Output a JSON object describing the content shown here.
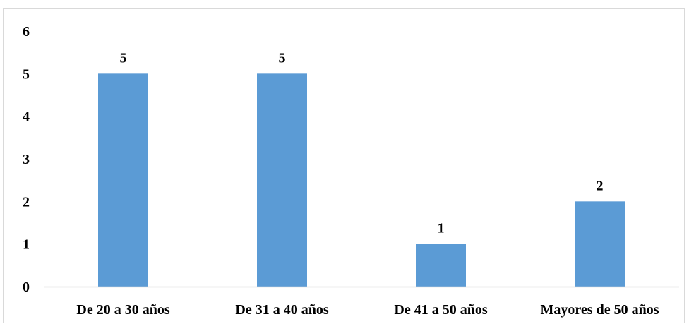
{
  "chart_data": {
    "type": "bar",
    "categories": [
      "De 20 a 30 años",
      "De 31 a 40 años",
      "De 41 a 50 años",
      "Mayores de 50 años"
    ],
    "values": [
      5,
      5,
      1,
      2
    ],
    "data_labels": [
      "5",
      "5",
      "1",
      "2"
    ],
    "y_ticks": [
      "0",
      "1",
      "2",
      "3",
      "4",
      "5",
      "6"
    ],
    "title": "",
    "xlabel": "",
    "ylabel": "",
    "ylim": [
      0,
      6
    ],
    "grid": false,
    "legend": "none",
    "bar_color": "#5b9bd5",
    "axis_color": "#d9d9d9"
  }
}
